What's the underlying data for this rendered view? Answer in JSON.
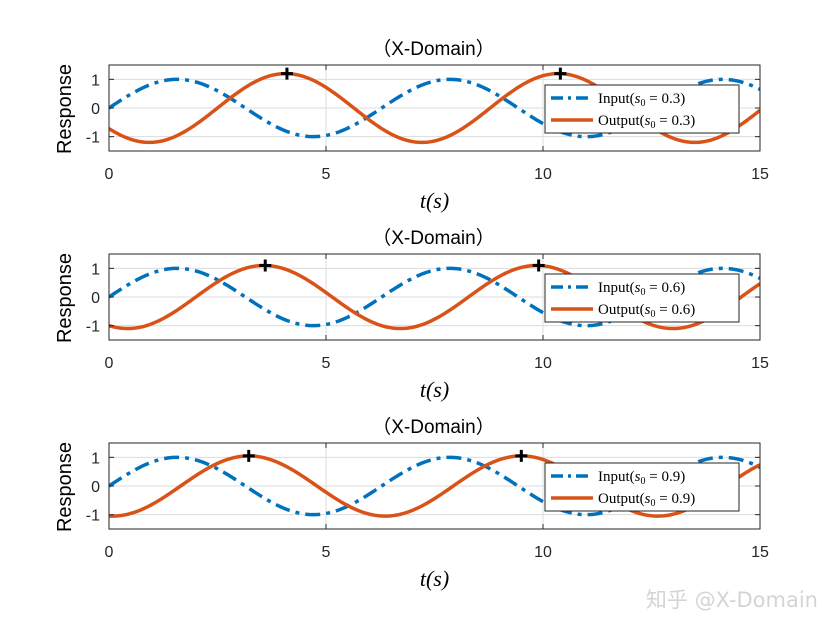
{
  "watermark": "知乎 @X-Domain",
  "colors": {
    "input": "#0072BD",
    "output": "#D95319",
    "marker": "#000000",
    "grid": "#dcdcdc",
    "axis": "#262626"
  },
  "chart_data": [
    {
      "type": "line",
      "title": "（X-Domain）",
      "xlabel": "t(s)",
      "ylabel": "Response",
      "xlim": [
        0,
        15
      ],
      "ylim": [
        -1.5,
        1.5
      ],
      "xticks": [
        "0",
        "5",
        "10",
        "15"
      ],
      "yticks": [
        "1",
        "0",
        "-1"
      ],
      "grid": true,
      "legend_position": "right",
      "series": [
        {
          "name": "Input(s0 = 0.3)",
          "display": "Input(",
          "sub": ") = 0.3)",
          "style": "dash-dot",
          "color": "#0072BD",
          "function": "sin(t)",
          "x_range": [
            0,
            15
          ]
        },
        {
          "name": "Output(s0 = 0.3)",
          "display": "Output(",
          "sub": ") = 0.3)",
          "style": "solid",
          "color": "#D95319",
          "function": "1.2*sin(t - 2.5)",
          "x_range": [
            0,
            15
          ]
        }
      ],
      "markers": [
        {
          "x": 4.1,
          "y": 1.2
        },
        {
          "x": 10.4,
          "y": 1.2
        }
      ]
    },
    {
      "type": "line",
      "title": "（X-Domain）",
      "xlabel": "t(s)",
      "ylabel": "Response",
      "xlim": [
        0,
        15
      ],
      "ylim": [
        -1.5,
        1.5
      ],
      "xticks": [
        "0",
        "5",
        "10",
        "15"
      ],
      "yticks": [
        "1",
        "0",
        "-1"
      ],
      "grid": true,
      "legend_position": "right",
      "series": [
        {
          "name": "Input(s0 = 0.6)",
          "display": "Input(",
          "sub": ") = 0.6)",
          "style": "dash-dot",
          "color": "#0072BD",
          "function": "sin(t)",
          "x_range": [
            0,
            15
          ]
        },
        {
          "name": "Output(s0 = 0.6)",
          "display": "Output(",
          "sub": ") = 0.6)",
          "style": "solid",
          "color": "#D95319",
          "function": "1.1*sin(t - 2.0)",
          "x_range": [
            0,
            15
          ]
        }
      ],
      "markers": [
        {
          "x": 3.6,
          "y": 1.1
        },
        {
          "x": 9.9,
          "y": 1.1
        }
      ]
    },
    {
      "type": "line",
      "title": "（X-Domain）",
      "xlabel": "t(s)",
      "ylabel": "Response",
      "xlim": [
        0,
        15
      ],
      "ylim": [
        -1.5,
        1.5
      ],
      "xticks": [
        "0",
        "5",
        "10",
        "15"
      ],
      "yticks": [
        "1",
        "0",
        "-1"
      ],
      "grid": true,
      "legend_position": "right",
      "series": [
        {
          "name": "Input(s0 = 0.9)",
          "display": "Input(",
          "sub": ") = 0.9)",
          "style": "dash-dot",
          "color": "#0072BD",
          "function": "sin(t)",
          "x_range": [
            0,
            15
          ]
        },
        {
          "name": "Output(s0 = 0.9)",
          "display": "Output(",
          "sub": ") = 0.9)",
          "style": "solid",
          "color": "#D95319",
          "function": "1.05*sin(t - 1.65)",
          "x_range": [
            0,
            15
          ]
        }
      ],
      "markers": [
        {
          "x": 3.22,
          "y": 1.05
        },
        {
          "x": 9.5,
          "y": 1.05
        }
      ]
    }
  ]
}
